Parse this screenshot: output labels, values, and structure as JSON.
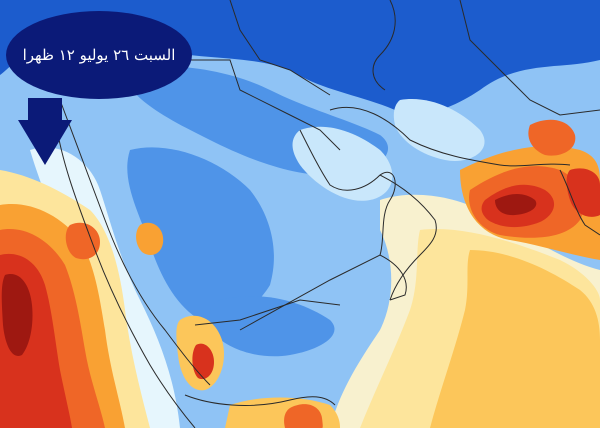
{
  "callout": {
    "text": "السبت ٢٦ يوليو ١٢ ظهرا"
  },
  "colors": {
    "callout_fill": "#0b1a78",
    "deep_blue": "#1c5ccd",
    "mid_blue": "#4f94e8",
    "light_blue": "#8fc3f5",
    "pale_blue": "#c9e7fb",
    "very_pale": "#e6f6fd",
    "cream": "#f8f1cf",
    "light_yellow": "#fde59c",
    "yellow_orange": "#fcc65a",
    "orange": "#f9a133",
    "orange_red": "#ef6627",
    "red": "#d8321d",
    "dark_red": "#9e1811",
    "border_line": "#2a2a2a"
  }
}
